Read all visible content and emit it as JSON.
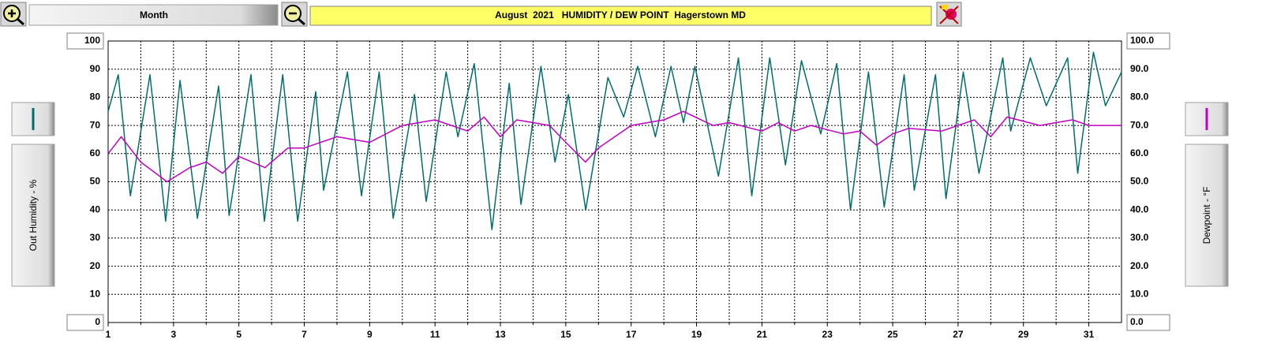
{
  "toolbar": {
    "period": "Month"
  },
  "chart_data": {
    "type": "line",
    "title": "August  2021   HUMIDITY / DEW POINT  Hagerstown MD",
    "ylabel": "Out Humidity - %",
    "y2label": "Dewpoint - °F",
    "xlim": [
      1,
      32
    ],
    "xticks": [
      1,
      3,
      5,
      7,
      9,
      11,
      13,
      15,
      17,
      19,
      21,
      23,
      25,
      27,
      29,
      31
    ],
    "xminor_ticks": [
      2,
      4,
      6,
      8,
      10,
      12,
      14,
      16,
      18,
      20,
      22,
      24,
      26,
      28,
      30
    ],
    "ylim": [
      0,
      100
    ],
    "yticks": [
      100,
      90,
      80,
      70,
      60,
      50,
      40,
      30,
      20,
      10,
      0
    ],
    "y2lim": [
      0,
      100
    ],
    "y2ticks": [
      {
        "value": 100,
        "label": "100.0"
      },
      {
        "value": 90,
        "label": "90.0"
      },
      {
        "value": 80,
        "label": "80.0"
      },
      {
        "value": 70,
        "label": "70.0"
      },
      {
        "value": 60,
        "label": "60.0"
      },
      {
        "value": 50,
        "label": "50.0"
      },
      {
        "value": 40,
        "label": "40.0"
      },
      {
        "value": 30,
        "label": "30.0"
      },
      {
        "value": 20,
        "label": "20.0"
      },
      {
        "value": 10,
        "label": "10.0"
      },
      {
        "value": 0,
        "label": "0.0"
      }
    ],
    "grid": true,
    "series": [
      {
        "color": "#006e6e",
        "x": [
          1,
          1.31,
          1.68,
          2.28,
          2.76,
          3.2,
          3.73,
          4.38,
          4.7,
          5.37,
          5.78,
          6.34,
          6.8,
          7.35,
          7.59,
          8.32,
          8.75,
          9.29,
          9.72,
          10.37,
          10.73,
          11.34,
          11.7,
          12.2,
          12.74,
          13.27,
          13.63,
          14.24,
          14.67,
          15.08,
          15.61,
          16.29,
          16.77,
          17.2,
          17.74,
          18.22,
          18.6,
          18.95,
          19.67,
          20.28,
          20.69,
          21.24,
          21.72,
          22.21,
          22.8,
          23.29,
          23.71,
          24.26,
          24.74,
          25.35,
          25.66,
          26.31,
          26.63,
          27.16,
          27.64,
          28.37,
          28.61,
          29.21,
          29.7,
          30.35,
          30.66,
          31.14,
          31.51,
          32
        ],
        "values": [
          75,
          88,
          45,
          88,
          36,
          86,
          37,
          84,
          38,
          88,
          36,
          88,
          36,
          82,
          47,
          89,
          45,
          89,
          37,
          81,
          43,
          89,
          66,
          92,
          33,
          85,
          42,
          91,
          57,
          81,
          40,
          87,
          73,
          91,
          66,
          91,
          71,
          91,
          52,
          94,
          45,
          94,
          56,
          93,
          67,
          92,
          40,
          89,
          41,
          88,
          47,
          88,
          44,
          89,
          53,
          94,
          68,
          94,
          77,
          94,
          53,
          96,
          77,
          89
        ]
      },
      {
        "color": "#c000c0",
        "axis": "y2",
        "x": [
          1,
          1.4,
          2,
          2.8,
          3.5,
          4,
          4.5,
          5,
          5.8,
          6.5,
          7,
          8,
          9,
          10,
          11,
          12,
          12.5,
          13,
          13.5,
          14.5,
          15,
          15.6,
          16,
          17,
          18,
          18.6,
          19.5,
          20,
          21,
          21.5,
          22,
          22.5,
          23.5,
          24,
          24.5,
          25,
          25.5,
          26.5,
          27.5,
          28,
          28.5,
          29.5,
          30,
          30.5,
          31,
          32
        ],
        "values": [
          60,
          66,
          57,
          50,
          55,
          57,
          53,
          59,
          55,
          62,
          62,
          66,
          64,
          70,
          72,
          68,
          73,
          66,
          72,
          70,
          64,
          57,
          62,
          70,
          72,
          75,
          70,
          71,
          68,
          71,
          68,
          70,
          67,
          68,
          63,
          67,
          69,
          68,
          72,
          66,
          73,
          70,
          71,
          72,
          70,
          70
        ]
      }
    ]
  }
}
